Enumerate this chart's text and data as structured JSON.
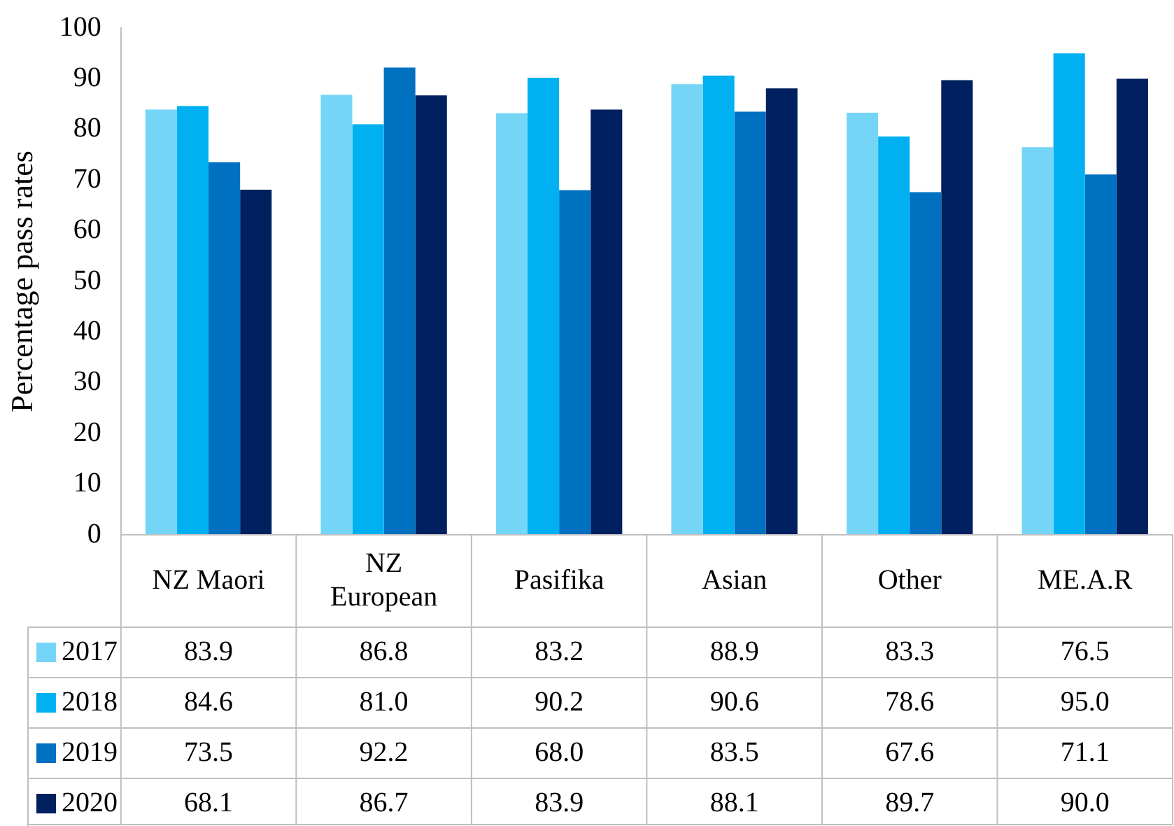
{
  "chart_data": {
    "type": "bar",
    "ylabel": "Percentage pass rates",
    "categories": [
      "NZ Maori",
      "NZ European",
      "Pasifika",
      "Asian",
      "Other",
      "ME.A.R"
    ],
    "series": [
      {
        "name": "2017",
        "color": "#75d5f7",
        "values": [
          83.9,
          86.8,
          83.2,
          88.9,
          83.3,
          76.5
        ]
      },
      {
        "name": "2018",
        "color": "#00b0f0",
        "values": [
          84.6,
          81.0,
          90.2,
          90.6,
          78.6,
          95.0
        ]
      },
      {
        "name": "2019",
        "color": "#0070c0",
        "values": [
          73.5,
          92.2,
          68.0,
          83.5,
          67.6,
          71.1
        ]
      },
      {
        "name": "2020",
        "color": "#002060",
        "values": [
          68.1,
          86.7,
          83.9,
          88.1,
          89.7,
          90.0
        ]
      }
    ],
    "value_labels": [
      [
        "83.9",
        "86.8",
        "83.2",
        "88.9",
        "83.3",
        "76.5"
      ],
      [
        "84.6",
        "81.0",
        "90.2",
        "90.6",
        "78.6",
        "95.0"
      ],
      [
        "73.5",
        "92.2",
        "68.0",
        "83.5",
        "67.6",
        "71.1"
      ],
      [
        "68.1",
        "86.7",
        "83.9",
        "88.1",
        "89.7",
        "90.0"
      ]
    ],
    "ylim": [
      0,
      100
    ],
    "yticks": [
      0,
      10,
      20,
      30,
      40,
      50,
      60,
      70,
      80,
      90,
      100
    ],
    "grid": false,
    "legend": "bottom"
  }
}
